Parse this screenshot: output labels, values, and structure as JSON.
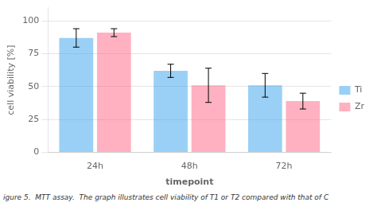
{
  "chart_data": {
    "type": "bar",
    "categories": [
      "24h",
      "48h",
      "72h"
    ],
    "series": [
      {
        "name": "Ti",
        "values": [
          87,
          62,
          51
        ],
        "errors": [
          7,
          5,
          9
        ]
      },
      {
        "name": "Zr",
        "values": [
          91,
          51,
          39
        ],
        "errors": [
          3,
          13,
          6
        ]
      }
    ],
    "xlabel": "timepoint",
    "ylabel": "cell viability [%]",
    "ylim": [
      0,
      110
    ],
    "yticks": [
      0,
      25,
      50,
      75,
      100
    ],
    "grid": "y",
    "legend": "right",
    "annotations": [
      "igure 5.  MTT assay.  The graph illustrates cell viability of T1 or T2 compared with that of C"
    ]
  }
}
